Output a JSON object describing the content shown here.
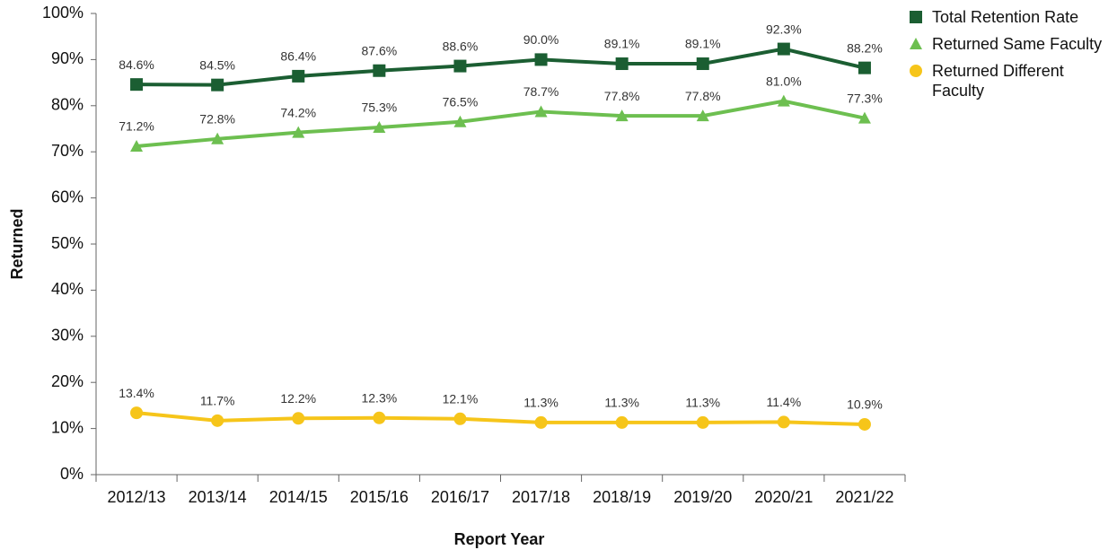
{
  "chart_data": {
    "type": "line",
    "xlabel": "Report Year",
    "ylabel": "Returned",
    "categories": [
      "2012/13",
      "2013/14",
      "2014/15",
      "2015/16",
      "2016/17",
      "2017/18",
      "2018/19",
      "2019/20",
      "2020/21",
      "2021/22"
    ],
    "series": [
      {
        "name": "Total Retention Rate",
        "color": "#1b5e32",
        "marker": "square",
        "values": [
          84.6,
          84.5,
          86.4,
          87.6,
          88.6,
          90.0,
          89.1,
          89.1,
          92.3,
          88.2
        ],
        "value_labels": [
          "84.6%",
          "84.5%",
          "86.4%",
          "87.6%",
          "88.6%",
          "90.0%",
          "89.1%",
          "89.1%",
          "92.3%",
          "88.2%"
        ]
      },
      {
        "name": "Returned Same Faculty",
        "color": "#6dbf50",
        "marker": "triangle",
        "values": [
          71.2,
          72.8,
          74.2,
          75.3,
          76.5,
          78.7,
          77.8,
          77.8,
          81.0,
          77.3
        ],
        "value_labels": [
          "71.2%",
          "72.8%",
          "74.2%",
          "75.3%",
          "76.5%",
          "78.7%",
          "77.8%",
          "77.8%",
          "81.0%",
          "77.3%"
        ]
      },
      {
        "name": "Returned Different Faculty",
        "color": "#f6c51a",
        "marker": "circle",
        "values": [
          13.4,
          11.7,
          12.2,
          12.3,
          12.1,
          11.3,
          11.3,
          11.3,
          11.4,
          10.9
        ],
        "value_labels": [
          "13.4%",
          "11.7%",
          "12.2%",
          "12.3%",
          "12.1%",
          "11.3%",
          "11.3%",
          "11.3%",
          "11.4%",
          "10.9%"
        ]
      }
    ],
    "ylim": [
      0,
      100
    ],
    "yticks": [
      {
        "value": 0,
        "label": "0%"
      },
      {
        "value": 10,
        "label": "10%"
      },
      {
        "value": 20,
        "label": "20%"
      },
      {
        "value": 30,
        "label": "30%"
      },
      {
        "value": 40,
        "label": "40%"
      },
      {
        "value": 50,
        "label": "50%"
      },
      {
        "value": 60,
        "label": "60%"
      },
      {
        "value": 70,
        "label": "70%"
      },
      {
        "value": 80,
        "label": "80%"
      },
      {
        "value": 90,
        "label": "90%"
      },
      {
        "value": 100,
        "label": "100%"
      }
    ],
    "legend": "right"
  }
}
